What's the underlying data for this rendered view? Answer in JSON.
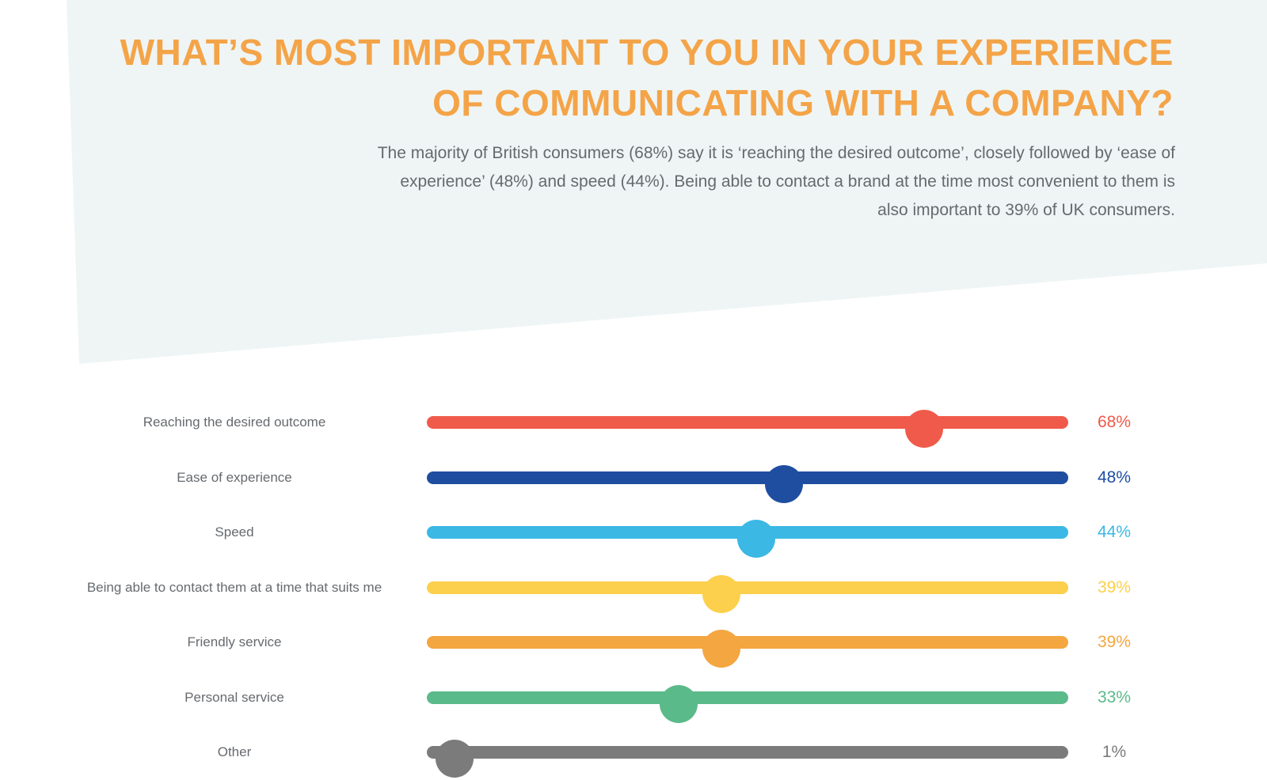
{
  "header": {
    "title": "WHAT’S MOST IMPORTANT TO YOU IN YOUR EXPERIENCE OF COMMUNICATING WITH A COMPANY?",
    "subtitle": "The majority of British consumers (68%) say it is ‘reaching the desired outcome’, closely followed by ‘ease of experience’ (48%) and speed (44%). Being able to contact a brand at the time most convenient to them is also important to 39% of UK consumers."
  },
  "colors": {
    "title": "#f4a448",
    "panel": "#eff5f5",
    "text": "#666a6e"
  },
  "chart_data": {
    "type": "bar",
    "categories": [
      "Reaching the desired outcome",
      "Ease of experience",
      "Speed",
      "Being able to contact them at a time that suits me",
      "Friendly service",
      "Personal service",
      "Other"
    ],
    "values": [
      68,
      48,
      44,
      39,
      39,
      33,
      1
    ],
    "value_labels": [
      "68%",
      "48%",
      "44%",
      "39%",
      "39%",
      "33%",
      "1%"
    ],
    "colors": [
      "#f05a4a",
      "#1f4ea1",
      "#3bb8e4",
      "#fcd04c",
      "#f4a640",
      "#5bba8a",
      "#7b7b7b"
    ],
    "ylim": [
      0,
      100
    ],
    "title": "WHAT’S MOST IMPORTANT TO YOU IN YOUR EXPERIENCE OF COMMUNICATING WITH A COMPANY?",
    "xlabel": "",
    "ylabel": ""
  }
}
